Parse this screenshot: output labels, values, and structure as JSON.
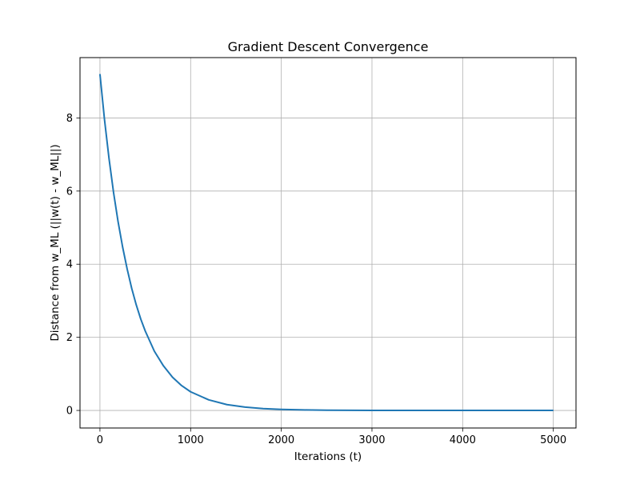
{
  "chart_data": {
    "type": "line",
    "title": "Gradient Descent Convergence",
    "xlabel": "Iterations (t)",
    "ylabel": "Distance from w_ML (||w(t) - w_ML||)",
    "xlim": [
      -220,
      5250
    ],
    "ylim": [
      -0.48,
      9.65
    ],
    "xticks": [
      0,
      1000,
      2000,
      3000,
      4000,
      5000
    ],
    "yticks": [
      0,
      2,
      4,
      6,
      8
    ],
    "xtick_labels": [
      "0",
      "1000",
      "2000",
      "3000",
      "4000",
      "5000"
    ],
    "ytick_labels": [
      "0",
      "2",
      "4",
      "6",
      "8"
    ],
    "grid": true,
    "series": [
      {
        "color": "#1f77b4",
        "x": [
          0,
          50,
          100,
          150,
          200,
          250,
          300,
          350,
          400,
          450,
          500,
          600,
          700,
          800,
          900,
          1000,
          1200,
          1400,
          1600,
          1800,
          2000,
          2250,
          2500,
          3000,
          3500,
          4000,
          4500,
          5000
        ],
        "y": [
          9.2,
          7.96,
          6.89,
          5.96,
          5.16,
          4.47,
          3.87,
          3.34,
          2.89,
          2.5,
          2.17,
          1.62,
          1.22,
          0.91,
          0.68,
          0.51,
          0.29,
          0.16,
          0.091,
          0.051,
          0.029,
          0.014,
          0.0068,
          0.0016,
          0.0004,
          0.0001,
          2e-05,
          0.0
        ]
      }
    ]
  }
}
